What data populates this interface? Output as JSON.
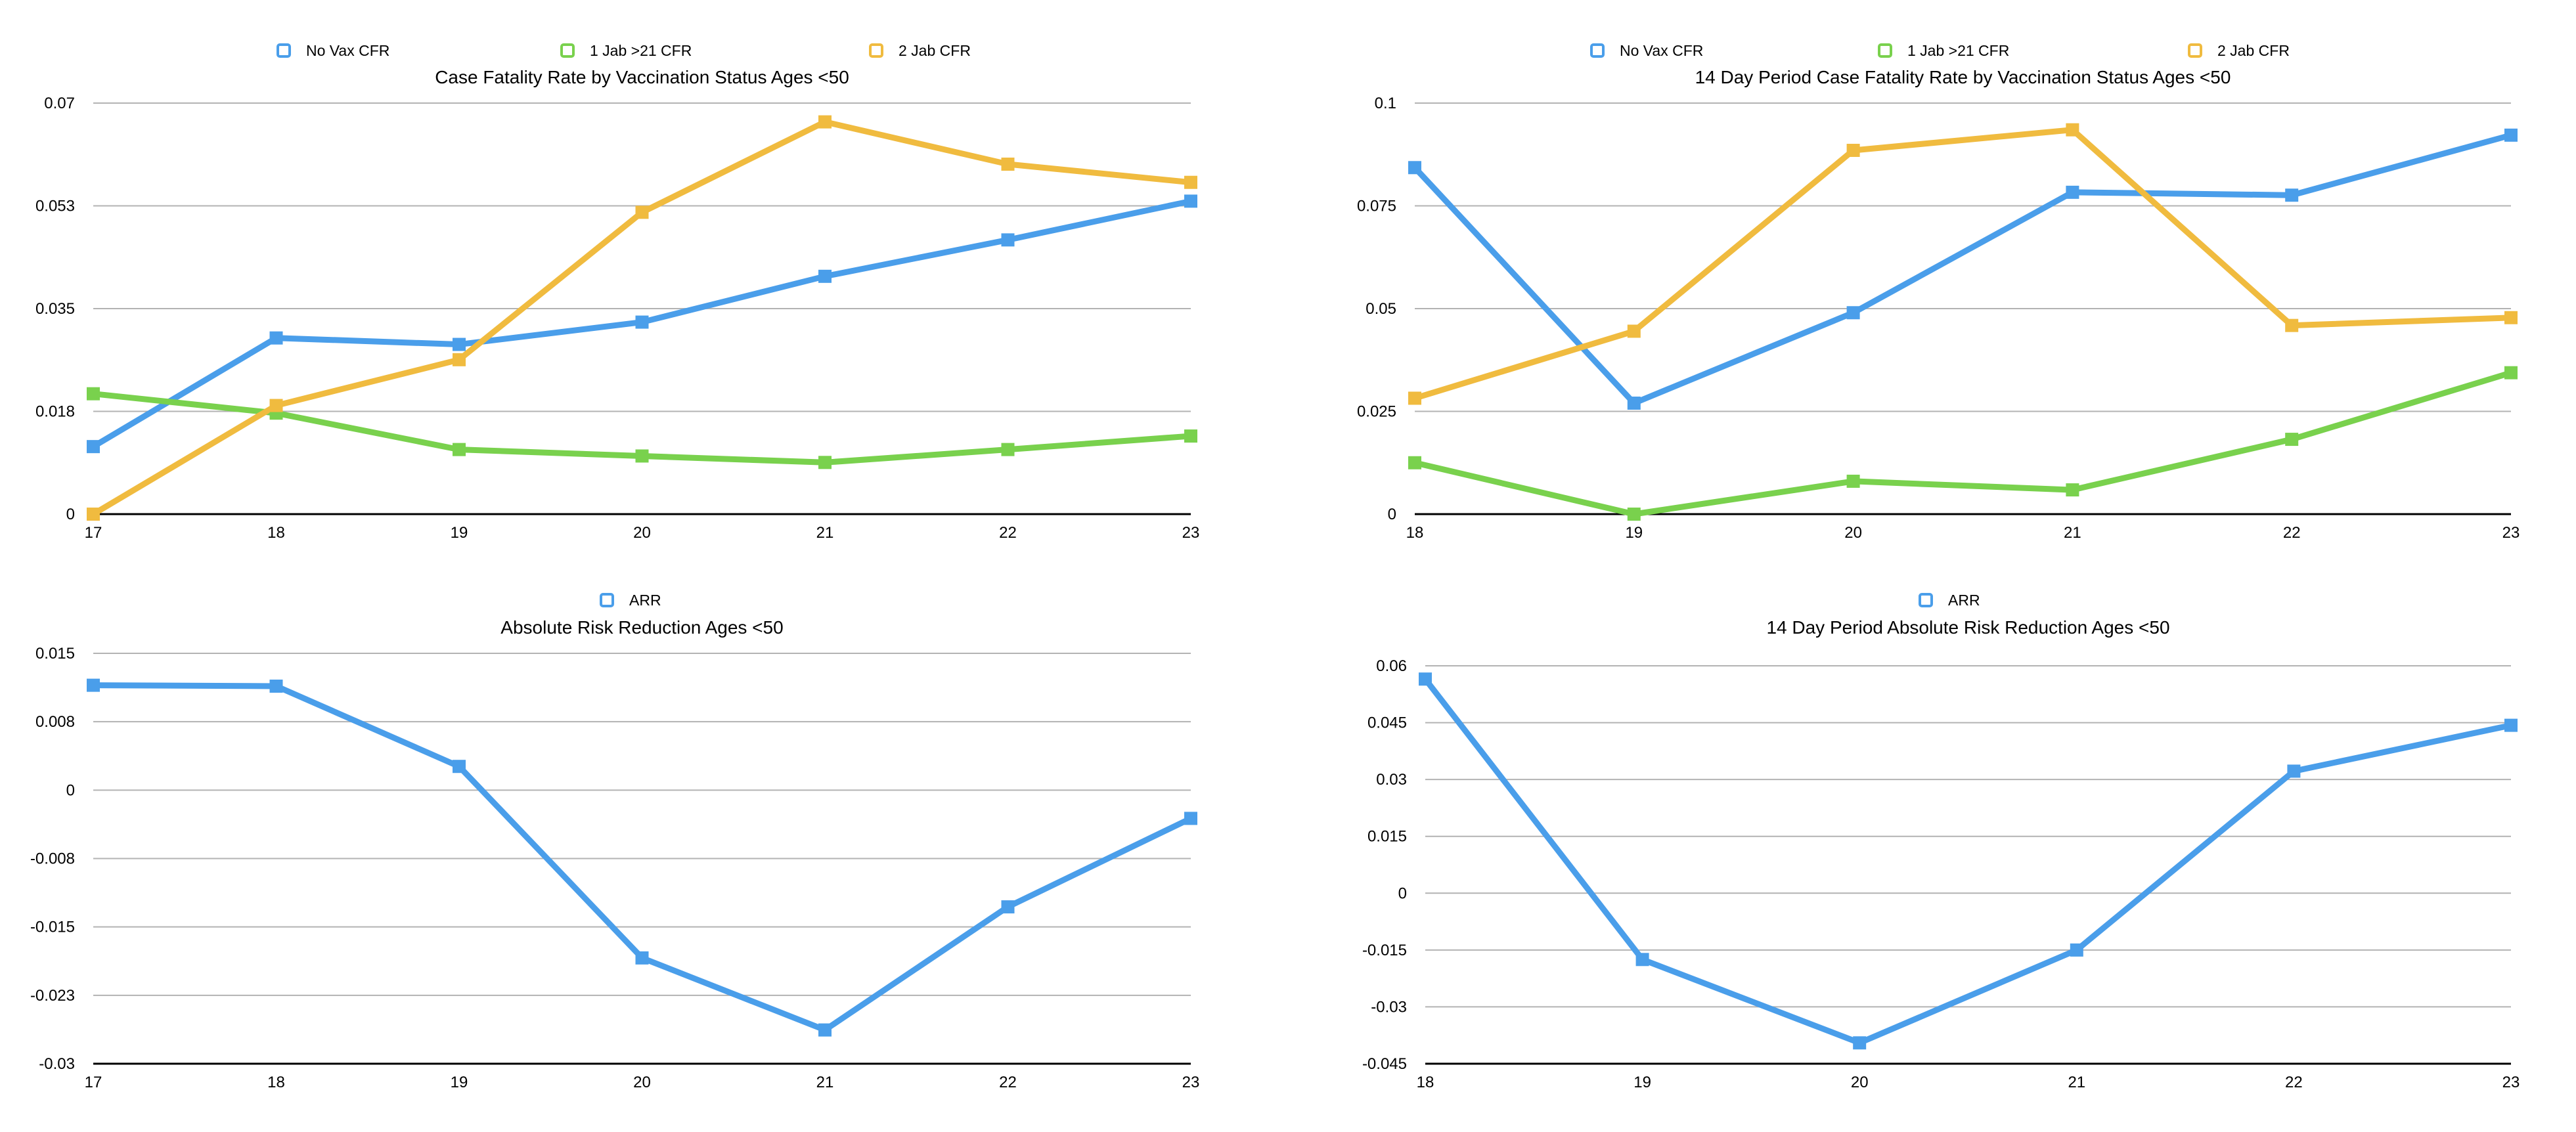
{
  "chart_data": [
    {
      "type": "line",
      "title": "Case Fatality Rate by Vaccination Status Ages <50",
      "categories": [
        "17",
        "18",
        "19",
        "20",
        "21",
        "22",
        "23"
      ],
      "y_ticks": [
        "0",
        "0.018",
        "0.035",
        "0.053",
        "0.07"
      ],
      "ylim": [
        0,
        0.07
      ],
      "grid": true,
      "legend_position": "top",
      "series": [
        {
          "name": "No Vax CFR",
          "color": "#4a9eea",
          "values": [
            0.0115,
            0.03,
            0.0289,
            0.0327,
            0.0405,
            0.0467,
            0.0533
          ]
        },
        {
          "name": "1 Jab >21 CFR",
          "color": "#79d14d",
          "values": [
            0.0205,
            0.0172,
            0.011,
            0.0099,
            0.0088,
            0.011,
            0.0133
          ]
        },
        {
          "name": "2 Jab CFR",
          "color": "#f0bb3f",
          "values": [
            0.0,
            0.0185,
            0.0263,
            0.0514,
            0.0668,
            0.0596,
            0.0565
          ]
        }
      ]
    },
    {
      "type": "line",
      "title": "14 Day Period Case Fatality Rate by Vaccination Status Ages <50",
      "categories": [
        "18",
        "19",
        "20",
        "21",
        "22",
        "23"
      ],
      "y_ticks": [
        "0",
        "0.025",
        "0.05",
        "0.075",
        "0.1"
      ],
      "ylim": [
        0,
        0.1
      ],
      "grid": true,
      "legend_position": "top",
      "series": [
        {
          "name": "No Vax CFR",
          "color": "#4a9eea",
          "values": [
            0.0843,
            0.027,
            0.049,
            0.0783,
            0.0776,
            0.0922
          ]
        },
        {
          "name": "1 Jab >21 CFR",
          "color": "#79d14d",
          "values": [
            0.0125,
            0.0,
            0.008,
            0.0059,
            0.0182,
            0.0344
          ]
        },
        {
          "name": "2 Jab CFR",
          "color": "#f0bb3f",
          "values": [
            0.0282,
            0.0445,
            0.0885,
            0.0935,
            0.0459,
            0.0478
          ]
        }
      ]
    },
    {
      "type": "line",
      "title": "Absolute Risk Reduction Ages <50",
      "categories": [
        "17",
        "18",
        "19",
        "20",
        "21",
        "22",
        "23"
      ],
      "y_ticks": [
        "-0.03",
        "-0.023",
        "-0.015",
        "-0.008",
        "0",
        "0.008",
        "0.015"
      ],
      "ylim": [
        -0.03,
        0.015
      ],
      "grid": true,
      "legend_position": "top",
      "series": [
        {
          "name": "ARR",
          "color": "#4a9eea",
          "values": [
            0.0115,
            0.0114,
            0.0026,
            -0.0184,
            -0.0263,
            -0.0128,
            -0.0031
          ]
        }
      ]
    },
    {
      "type": "line",
      "title": "14 Day Period Absolute Risk Reduction Ages <50",
      "categories": [
        "18",
        "19",
        "20",
        "21",
        "22",
        "23"
      ],
      "y_ticks": [
        "-0.045",
        "-0.03",
        "-0.015",
        "0",
        "0.015",
        "0.03",
        "0.045",
        "0.06"
      ],
      "ylim": [
        -0.045,
        0.06
      ],
      "grid": true,
      "legend_position": "top",
      "series": [
        {
          "name": "ARR",
          "color": "#4a9eea",
          "values": [
            0.0565,
            -0.0175,
            -0.0395,
            -0.015,
            0.0322,
            0.0443
          ]
        }
      ]
    }
  ]
}
